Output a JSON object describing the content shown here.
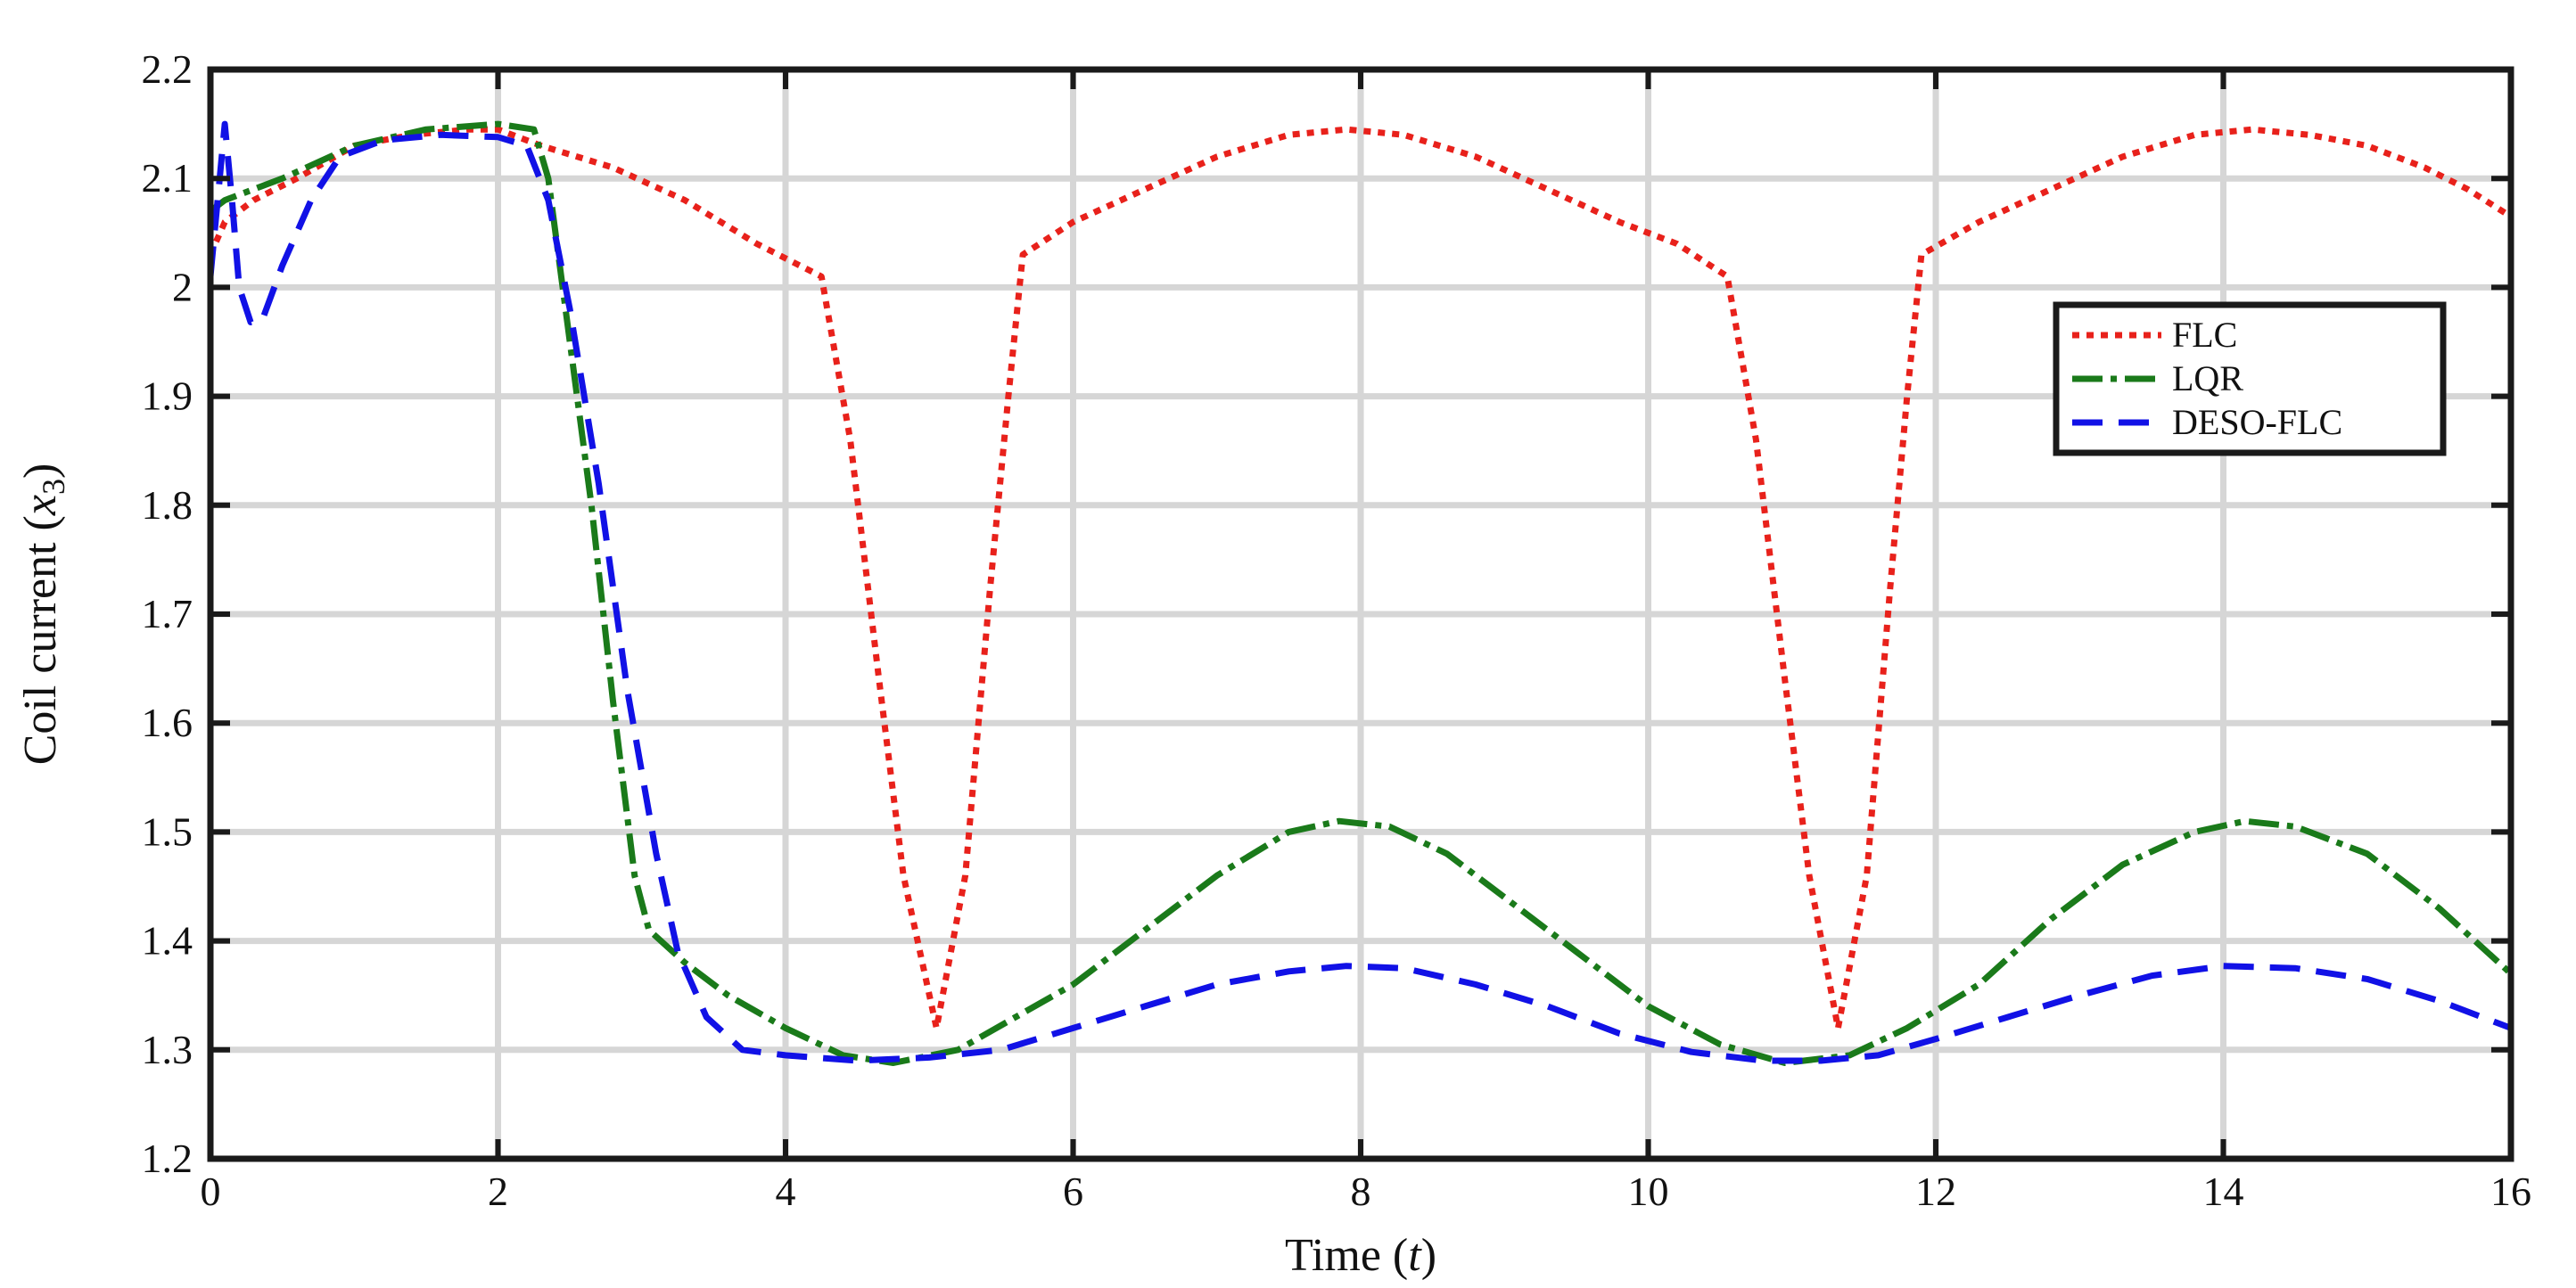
{
  "chart_data": {
    "type": "line",
    "title": "",
    "xlabel": "Time",
    "xlabel_var": "t",
    "ylabel": "Coil current",
    "ylabel_var": "x",
    "ylabel_sub": "3",
    "xlim": [
      0,
      16
    ],
    "ylim": [
      1.2,
      2.2
    ],
    "x_ticks": [
      0,
      2,
      4,
      6,
      8,
      10,
      12,
      14,
      16
    ],
    "y_ticks": [
      1.2,
      1.3,
      1.4,
      1.5,
      1.6,
      1.7,
      1.8,
      1.9,
      2.0,
      2.1,
      2.2
    ],
    "x_tick_labels": [
      "0",
      "2",
      "4",
      "6",
      "8",
      "10",
      "12",
      "14",
      "16"
    ],
    "y_tick_labels": [
      "1.2",
      "1.3",
      "1.4",
      "1.5",
      "1.6",
      "1.7",
      "1.8",
      "1.9",
      "2",
      "2.1",
      "2.2"
    ],
    "grid": true,
    "legend_position": "right",
    "series": [
      {
        "name": "FLC",
        "color": "#e8211b",
        "style": "dotted",
        "points": [
          [
            0,
            2.03
          ],
          [
            0.1,
            2.06
          ],
          [
            0.3,
            2.08
          ],
          [
            0.6,
            2.1
          ],
          [
            1.0,
            2.13
          ],
          [
            1.4,
            2.14
          ],
          [
            1.8,
            2.145
          ],
          [
            2.0,
            2.145
          ],
          [
            2.3,
            2.13
          ],
          [
            2.8,
            2.11
          ],
          [
            3.3,
            2.08
          ],
          [
            3.8,
            2.04
          ],
          [
            4.25,
            2.01
          ],
          [
            4.45,
            1.86
          ],
          [
            4.65,
            1.64
          ],
          [
            4.82,
            1.46
          ],
          [
            5.05,
            1.32
          ],
          [
            5.25,
            1.46
          ],
          [
            5.42,
            1.72
          ],
          [
            5.55,
            1.9
          ],
          [
            5.65,
            2.03
          ],
          [
            6.0,
            2.06
          ],
          [
            6.5,
            2.09
          ],
          [
            7.0,
            2.12
          ],
          [
            7.5,
            2.14
          ],
          [
            7.9,
            2.145
          ],
          [
            8.3,
            2.14
          ],
          [
            8.8,
            2.12
          ],
          [
            9.3,
            2.09
          ],
          [
            9.8,
            2.06
          ],
          [
            10.2,
            2.04
          ],
          [
            10.55,
            2.01
          ],
          [
            10.75,
            1.86
          ],
          [
            10.95,
            1.64
          ],
          [
            11.12,
            1.46
          ],
          [
            11.32,
            1.32
          ],
          [
            11.52,
            1.46
          ],
          [
            11.68,
            1.72
          ],
          [
            11.8,
            1.9
          ],
          [
            11.9,
            2.03
          ],
          [
            12.3,
            2.06
          ],
          [
            12.8,
            2.09
          ],
          [
            13.3,
            2.12
          ],
          [
            13.8,
            2.14
          ],
          [
            14.2,
            2.145
          ],
          [
            14.6,
            2.14
          ],
          [
            15.0,
            2.13
          ],
          [
            15.4,
            2.11
          ],
          [
            15.7,
            2.09
          ],
          [
            16.0,
            2.065
          ]
        ]
      },
      {
        "name": "LQR",
        "color": "#1a7a1a",
        "style": "dashdot",
        "points": [
          [
            0,
            2.07
          ],
          [
            0.1,
            2.08
          ],
          [
            0.5,
            2.1
          ],
          [
            1.0,
            2.13
          ],
          [
            1.5,
            2.145
          ],
          [
            2.0,
            2.15
          ],
          [
            2.25,
            2.145
          ],
          [
            2.35,
            2.1
          ],
          [
            2.5,
            1.95
          ],
          [
            2.65,
            1.8
          ],
          [
            2.8,
            1.62
          ],
          [
            2.95,
            1.46
          ],
          [
            3.05,
            1.41
          ],
          [
            3.3,
            1.38
          ],
          [
            3.6,
            1.35
          ],
          [
            4.0,
            1.32
          ],
          [
            4.4,
            1.295
          ],
          [
            4.75,
            1.288
          ],
          [
            5.2,
            1.3
          ],
          [
            5.6,
            1.33
          ],
          [
            6.0,
            1.36
          ],
          [
            6.5,
            1.41
          ],
          [
            7.0,
            1.46
          ],
          [
            7.5,
            1.5
          ],
          [
            7.85,
            1.51
          ],
          [
            8.2,
            1.505
          ],
          [
            8.6,
            1.48
          ],
          [
            9.0,
            1.44
          ],
          [
            9.5,
            1.39
          ],
          [
            10.0,
            1.34
          ],
          [
            10.5,
            1.305
          ],
          [
            10.95,
            1.288
          ],
          [
            11.4,
            1.295
          ],
          [
            11.8,
            1.32
          ],
          [
            12.3,
            1.36
          ],
          [
            12.8,
            1.42
          ],
          [
            13.3,
            1.47
          ],
          [
            13.8,
            1.5
          ],
          [
            14.15,
            1.51
          ],
          [
            14.5,
            1.505
          ],
          [
            15.0,
            1.48
          ],
          [
            15.5,
            1.43
          ],
          [
            16.0,
            1.37
          ]
        ]
      },
      {
        "name": "DESO-FLC",
        "color": "#1111e6",
        "style": "dashed",
        "points": [
          [
            0,
            2.01
          ],
          [
            0.05,
            2.08
          ],
          [
            0.1,
            2.15
          ],
          [
            0.15,
            2.08
          ],
          [
            0.2,
            2.0
          ],
          [
            0.28,
            1.968
          ],
          [
            0.36,
            1.97
          ],
          [
            0.5,
            2.02
          ],
          [
            0.7,
            2.08
          ],
          [
            0.9,
            2.12
          ],
          [
            1.2,
            2.135
          ],
          [
            1.6,
            2.14
          ],
          [
            2.0,
            2.138
          ],
          [
            2.2,
            2.13
          ],
          [
            2.35,
            2.08
          ],
          [
            2.5,
            1.98
          ],
          [
            2.7,
            1.82
          ],
          [
            2.9,
            1.63
          ],
          [
            3.1,
            1.48
          ],
          [
            3.25,
            1.39
          ],
          [
            3.45,
            1.33
          ],
          [
            3.7,
            1.3
          ],
          [
            4.0,
            1.295
          ],
          [
            4.5,
            1.29
          ],
          [
            5.0,
            1.293
          ],
          [
            5.5,
            1.3
          ],
          [
            6.0,
            1.32
          ],
          [
            6.5,
            1.34
          ],
          [
            7.0,
            1.36
          ],
          [
            7.5,
            1.372
          ],
          [
            7.9,
            1.377
          ],
          [
            8.3,
            1.375
          ],
          [
            8.8,
            1.36
          ],
          [
            9.3,
            1.34
          ],
          [
            9.8,
            1.315
          ],
          [
            10.3,
            1.298
          ],
          [
            10.8,
            1.29
          ],
          [
            11.2,
            1.29
          ],
          [
            11.6,
            1.295
          ],
          [
            12.0,
            1.31
          ],
          [
            12.5,
            1.33
          ],
          [
            13.0,
            1.35
          ],
          [
            13.5,
            1.368
          ],
          [
            14.0,
            1.377
          ],
          [
            14.5,
            1.375
          ],
          [
            15.0,
            1.365
          ],
          [
            15.5,
            1.345
          ],
          [
            16.0,
            1.32
          ]
        ]
      }
    ]
  }
}
